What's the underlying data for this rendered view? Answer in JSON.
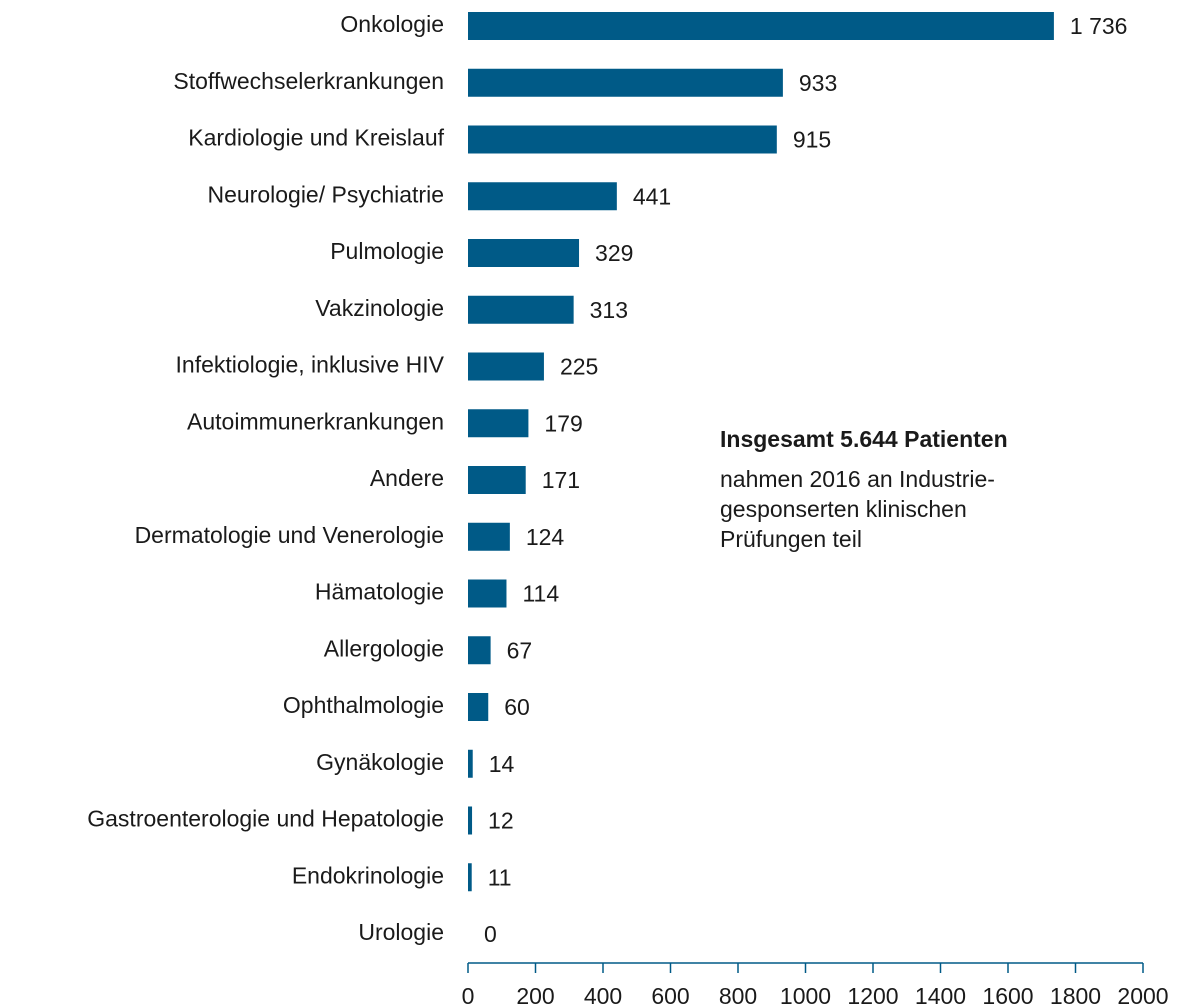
{
  "chart_data": {
    "type": "barh",
    "categories": [
      "Onkologie",
      "Stoffwechselerkrankungen",
      "Kardiologie und Kreislauf",
      "Neurologie/ Psychiatrie",
      "Pulmologie",
      "Vakzinologie",
      "Infektiologie, inklusive HIV",
      "Autoimmunerkrankungen",
      "Andere",
      "Dermatologie und Venerologie",
      "Hämatologie",
      "Allergologie",
      "Ophthalmologie",
      "Gynäkologie",
      "Gastroenterologie und Hepatologie",
      "Endokrinologie",
      "Urologie"
    ],
    "values": [
      1736,
      933,
      915,
      441,
      329,
      313,
      225,
      179,
      171,
      124,
      114,
      67,
      60,
      14,
      12,
      11,
      0
    ],
    "value_labels": [
      "1 736",
      "933",
      "915",
      "441",
      "329",
      "313",
      "225",
      "179",
      "171",
      "124",
      "114",
      "67",
      "60",
      "14",
      "12",
      "11",
      "0"
    ],
    "color": "#005a87",
    "xlim": [
      0,
      2000
    ],
    "xticks": [
      0,
      200,
      400,
      600,
      800,
      1000,
      1200,
      1400,
      1600,
      1800,
      2000
    ],
    "annotation": {
      "bold": "Insgesamt 5.644 Patienten",
      "lines": [
        "nahmen 2016 an Industrie-",
        "gesponserten klinischen",
        "Prüfungen teil"
      ]
    }
  }
}
